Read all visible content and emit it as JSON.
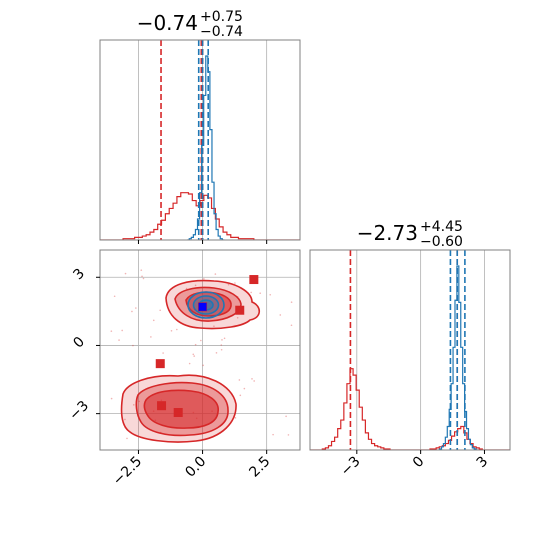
{
  "chart_data": {
    "type": "corner",
    "colors": {
      "red": "#d62728",
      "blue": "#1f77b4",
      "marker_blue": "#0000ff",
      "grid": "#b0b0b0"
    },
    "panels": [
      {
        "id": "hist-param-1",
        "type": "histogram",
        "title": {
          "main": "−0.74",
          "sup": "+0.75",
          "sub": "−0.74"
        },
        "xlim": [
          -4.0,
          3.8
        ],
        "x_grid": [
          -2.5,
          0.0,
          2.5
        ],
        "series": [
          {
            "name": "",
            "color": "red",
            "bins": [
              -4.0,
              3.8
            ],
            "counts": [
              0,
              0,
              0,
              0,
              0,
              0,
              1,
              1,
              1,
              2,
              2,
              3,
              4,
              6,
              8,
              12,
              15,
              20,
              24,
              28,
              33,
              36,
              36,
              35,
              30,
              26,
              30,
              34,
              32,
              24,
              16,
              10,
              6,
              4,
              2,
              2,
              1,
              1,
              1,
              1,
              0,
              0,
              0,
              0,
              0,
              0,
              0,
              0,
              0,
              0,
              0,
              0
            ],
            "quantile_lines": [
              -1.62,
              -0.05,
              0.0
            ]
          },
          {
            "name": "",
            "color": "blue",
            "bins": [
              -0.6,
              0.85
            ],
            "counts": [
              0,
              1,
              2,
              4,
              8,
              16,
              36,
              72,
              110,
              140,
              128,
              84,
              44,
              20,
              8,
              3,
              1,
              0
            ],
            "quantile_lines": [
              -0.15,
              0.0,
              0.22
            ]
          }
        ]
      },
      {
        "id": "hist-param-2",
        "type": "histogram",
        "title": {
          "main": "−2.73",
          "sup": "+4.45",
          "sub": "−0.60"
        },
        "xlim": [
          -5.2,
          4.2
        ],
        "x_ticks": [
          -3,
          0,
          3
        ],
        "x_tick_labels": [
          "−3",
          "0",
          "3"
        ],
        "series": [
          {
            "name": "",
            "color": "red",
            "bins": [
              -5.2,
              4.2
            ],
            "counts": [
              0,
              0,
              0,
              0,
              1,
              2,
              4,
              8,
              12,
              20,
              28,
              44,
              62,
              76,
              70,
              56,
              40,
              28,
              16,
              10,
              6,
              4,
              3,
              2,
              1,
              1,
              0,
              0,
              0,
              0,
              0,
              0,
              0,
              0,
              0,
              0,
              0,
              0,
              0,
              1,
              1,
              2,
              3,
              4,
              6,
              9,
              13,
              17,
              20,
              22,
              16,
              10,
              6,
              3,
              2,
              1,
              0,
              0,
              0,
              0,
              0,
              0,
              0,
              0,
              0
            ],
            "quantile_lines": [
              -3.3,
              1.72
            ]
          },
          {
            "name": "",
            "color": "blue",
            "bins": [
              0.8,
              2.7
            ],
            "counts": [
              0,
              1,
              3,
              6,
              12,
              22,
              38,
              62,
              96,
              140,
              172,
              138,
              96,
              62,
              36,
              20,
              10,
              5,
              2,
              1,
              0
            ],
            "quantile_lines": [
              1.4,
              1.72,
              2.08
            ]
          }
        ]
      },
      {
        "id": "scatter-2d",
        "type": "contour",
        "xlim": [
          -4.0,
          3.8
        ],
        "ylim": [
          -4.6,
          4.2
        ],
        "x_ticks": [
          -2.5,
          0.0,
          2.5
        ],
        "x_tick_labels": [
          "−2.5",
          "0.0",
          "2.5"
        ],
        "y_ticks": [
          -3,
          0,
          3
        ],
        "y_tick_labels": [
          "−3",
          "0",
          "3"
        ],
        "red_markers": [
          {
            "x": 2.0,
            "y": 2.9
          },
          {
            "x": 1.45,
            "y": 1.55
          },
          {
            "x": -1.65,
            "y": -0.8
          },
          {
            "x": -1.6,
            "y": -2.65
          },
          {
            "x": -0.95,
            "y": -2.95
          },
          {
            "x": 0.0,
            "y": 1.7
          }
        ],
        "blue_marker": {
          "x": 0.0,
          "y": 1.7
        }
      }
    ]
  }
}
